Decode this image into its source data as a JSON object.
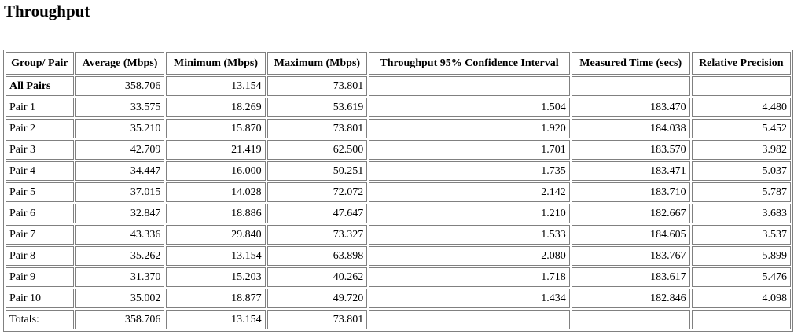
{
  "header": {
    "title": "Throughput"
  },
  "table": {
    "columns": [
      "Group/ Pair",
      "Average (Mbps)",
      "Minimum (Mbps)",
      "Maximum (Mbps)",
      "Throughput 95% Confidence Interval",
      "Measured Time (secs)",
      "Relative Precision"
    ],
    "rows": [
      [
        "All Pairs",
        "358.706",
        "13.154",
        "73.801",
        null,
        null,
        null
      ],
      [
        "Pair 1",
        "33.575",
        "18.269",
        "53.619",
        "1.504",
        "183.470",
        "4.480"
      ],
      [
        "Pair 2",
        "35.210",
        "15.870",
        "73.801",
        "1.920",
        "184.038",
        "5.452"
      ],
      [
        "Pair 3",
        "42.709",
        "21.419",
        "62.500",
        "1.701",
        "183.570",
        "3.982"
      ],
      [
        "Pair 4",
        "34.447",
        "16.000",
        "50.251",
        "1.735",
        "183.471",
        "5.037"
      ],
      [
        "Pair 5",
        "37.015",
        "14.028",
        "72.072",
        "2.142",
        "183.710",
        "5.787"
      ],
      [
        "Pair 6",
        "32.847",
        "18.886",
        "47.647",
        "1.210",
        "182.667",
        "3.683"
      ],
      [
        "Pair 7",
        "43.336",
        "29.840",
        "73.327",
        "1.533",
        "184.605",
        "3.537"
      ],
      [
        "Pair 8",
        "35.262",
        "13.154",
        "63.898",
        "2.080",
        "183.767",
        "5.899"
      ],
      [
        "Pair 9",
        "31.370",
        "15.203",
        "40.262",
        "1.718",
        "183.617",
        "5.476"
      ],
      [
        "Pair 10",
        "35.002",
        "18.877",
        "49.720",
        "1.434",
        "182.846",
        "4.098"
      ],
      [
        "Totals:",
        "358.706",
        "13.154",
        "73.801",
        null,
        null,
        null
      ]
    ]
  }
}
